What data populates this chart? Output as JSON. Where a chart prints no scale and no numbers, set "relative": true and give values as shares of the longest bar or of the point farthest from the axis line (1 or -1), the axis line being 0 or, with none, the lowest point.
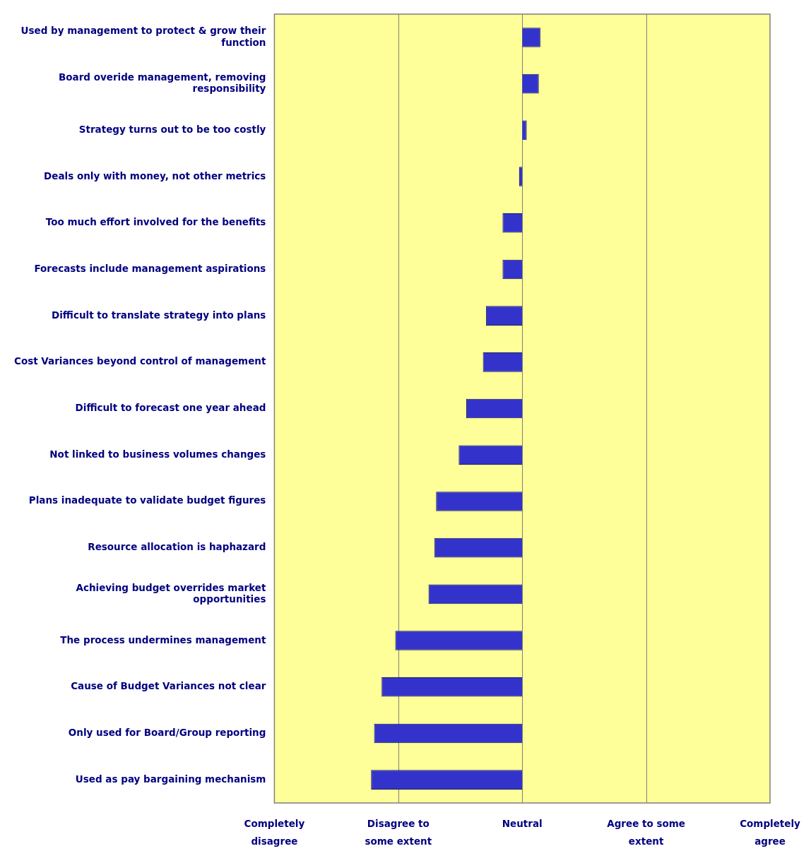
{
  "chart_data": {
    "type": "bar",
    "orientation": "horizontal",
    "relative": true,
    "categories": [
      "Used by management to protect & grow their function",
      "Board overide management, removing responsibility",
      "Strategy turns out to be too costly",
      "Deals only with money, not other metrics",
      "Too much effort involved for the benefits",
      "Forecasts include management aspirations",
      "Difficult to translate strategy into plans",
      "Cost Variances beyond control of management",
      "Difficult to forecast one year ahead",
      "Not linked to business volumes changes",
      "Plans inadequate to validate budget figures",
      "Resource allocation is haphazard",
      "Achieving budget overrides market opportunities",
      "The process undermines management",
      "Cause of Budget Variances not clear",
      "Only used for Board/Group reporting",
      "Used as pay bargaining mechanism"
    ],
    "values": [
      0.12,
      0.11,
      0.03,
      -0.02,
      -0.13,
      -0.13,
      -0.24,
      -0.26,
      -0.37,
      -0.42,
      -0.57,
      -0.58,
      -0.62,
      -0.84,
      -0.93,
      -0.98,
      -1
    ],
    "color": "#3333cc",
    "annotations": [
      "Completely disagree",
      "Disagree to some extent",
      "Neutral",
      "Agree to some extent",
      "Completely agree"
    ],
    "ref_lines": [
      {
        "axis": "x",
        "value": -0.82,
        "color": "#808080"
      },
      {
        "axis": "x",
        "value": 0.82,
        "color": "#808080"
      }
    ],
    "legend": false
  }
}
